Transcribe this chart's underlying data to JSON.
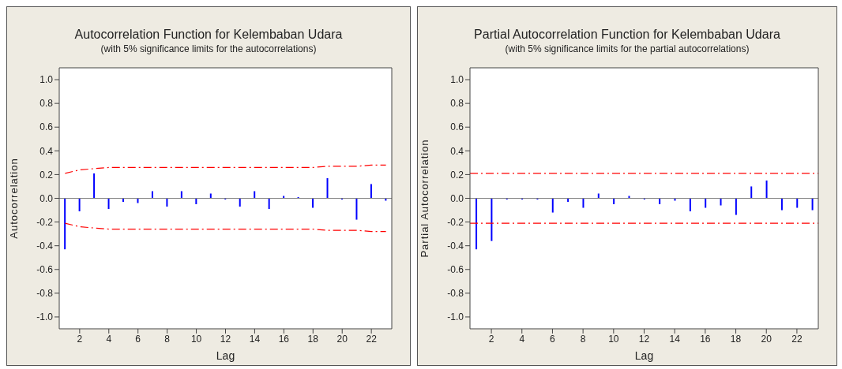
{
  "chart_data": [
    {
      "type": "bar",
      "title": "Autocorrelation Function for Kelembaban Udara",
      "subtitle": "(with 5% significance limits for the autocorrelations)",
      "xlabel": "Lag",
      "ylabel": "Autocorrelation",
      "x": [
        1,
        2,
        3,
        4,
        5,
        6,
        7,
        8,
        9,
        10,
        11,
        12,
        13,
        14,
        15,
        16,
        17,
        18,
        19,
        20,
        21,
        22,
        23
      ],
      "series": [
        {
          "color": "#0000ff",
          "values": [
            -0.43,
            -0.11,
            0.21,
            -0.09,
            -0.03,
            -0.04,
            0.06,
            -0.07,
            0.06,
            -0.05,
            0.04,
            -0.01,
            -0.07,
            0.06,
            -0.09,
            0.02,
            0.01,
            -0.08,
            0.17,
            -0.01,
            -0.18,
            0.12,
            -0.02
          ]
        },
        {
          "type": "line",
          "color": "#ff0000",
          "line_style": "dashed",
          "values": [
            0.21,
            0.24,
            0.25,
            0.26,
            0.26,
            0.26,
            0.26,
            0.26,
            0.26,
            0.26,
            0.26,
            0.26,
            0.26,
            0.26,
            0.26,
            0.26,
            0.26,
            0.26,
            0.27,
            0.27,
            0.27,
            0.28,
            0.28
          ]
        },
        {
          "type": "line",
          "color": "#ff0000",
          "line_style": "dashed",
          "values": [
            -0.21,
            -0.24,
            -0.25,
            -0.26,
            -0.26,
            -0.26,
            -0.26,
            -0.26,
            -0.26,
            -0.26,
            -0.26,
            -0.26,
            -0.26,
            -0.26,
            -0.26,
            -0.26,
            -0.26,
            -0.26,
            -0.27,
            -0.27,
            -0.27,
            -0.28,
            -0.28
          ]
        }
      ],
      "xlim": [
        0.6,
        23.4
      ],
      "xticks": [
        2,
        4,
        6,
        8,
        10,
        12,
        14,
        16,
        18,
        20,
        22
      ],
      "ylim": [
        -1.1,
        1.1
      ],
      "yticks": [
        {
          "value": -1.0,
          "label": "-1.0"
        },
        {
          "value": -0.8,
          "label": "-0.8"
        },
        {
          "value": -0.6,
          "label": "-0.6"
        },
        {
          "value": -0.4,
          "label": "-0.4"
        },
        {
          "value": -0.2,
          "label": "-0.2"
        },
        {
          "value": 0,
          "label": "0.0"
        },
        {
          "value": 0.2,
          "label": "0.2"
        },
        {
          "value": 0.4,
          "label": "0.4"
        },
        {
          "value": 0.6,
          "label": "0.6"
        },
        {
          "value": 0.8,
          "label": "0.8"
        },
        {
          "value": 1.0,
          "label": "1.0"
        }
      ],
      "ref_lines": [
        {
          "axis": "y",
          "value": 0,
          "color": "#808080"
        }
      ],
      "grid": false,
      "legend": false
    },
    {
      "type": "bar",
      "title": "Partial Autocorrelation Function for Kelembaban Udara",
      "subtitle": "(with 5% significance limits for the partial autocorrelations)",
      "xlabel": "Lag",
      "ylabel": "Partial Autocorrelation",
      "x": [
        1,
        2,
        3,
        4,
        5,
        6,
        7,
        8,
        9,
        10,
        11,
        12,
        13,
        14,
        15,
        16,
        17,
        18,
        19,
        20,
        21,
        22,
        23
      ],
      "series": [
        {
          "color": "#0000ff",
          "values": [
            -0.43,
            -0.36,
            -0.01,
            -0.01,
            -0.01,
            -0.12,
            -0.03,
            -0.08,
            0.04,
            -0.05,
            0.02,
            -0.01,
            -0.05,
            -0.02,
            -0.11,
            -0.08,
            -0.06,
            -0.14,
            0.1,
            0.15,
            -0.1,
            -0.08,
            -0.1
          ]
        }
      ],
      "xlim": [
        0.6,
        23.4
      ],
      "xticks": [
        2,
        4,
        6,
        8,
        10,
        12,
        14,
        16,
        18,
        20,
        22
      ],
      "ylim": [
        -1.1,
        1.1
      ],
      "yticks": [
        {
          "value": -1.0,
          "label": "-1.0"
        },
        {
          "value": -0.8,
          "label": "-0.8"
        },
        {
          "value": -0.6,
          "label": "-0.6"
        },
        {
          "value": -0.4,
          "label": "-0.4"
        },
        {
          "value": -0.2,
          "label": "-0.2"
        },
        {
          "value": 0,
          "label": "0.0"
        },
        {
          "value": 0.2,
          "label": "0.2"
        },
        {
          "value": 0.4,
          "label": "0.4"
        },
        {
          "value": 0.6,
          "label": "0.6"
        },
        {
          "value": 0.8,
          "label": "0.8"
        },
        {
          "value": 1.0,
          "label": "1.0"
        }
      ],
      "ref_lines": [
        {
          "axis": "y",
          "value": 0,
          "color": "#808080"
        },
        {
          "axis": "y",
          "value": 0.21,
          "color": "#ff0000",
          "line_style": "dashed"
        },
        {
          "axis": "y",
          "value": -0.21,
          "color": "#ff0000",
          "line_style": "dashed"
        }
      ],
      "grid": false,
      "legend": false
    }
  ]
}
